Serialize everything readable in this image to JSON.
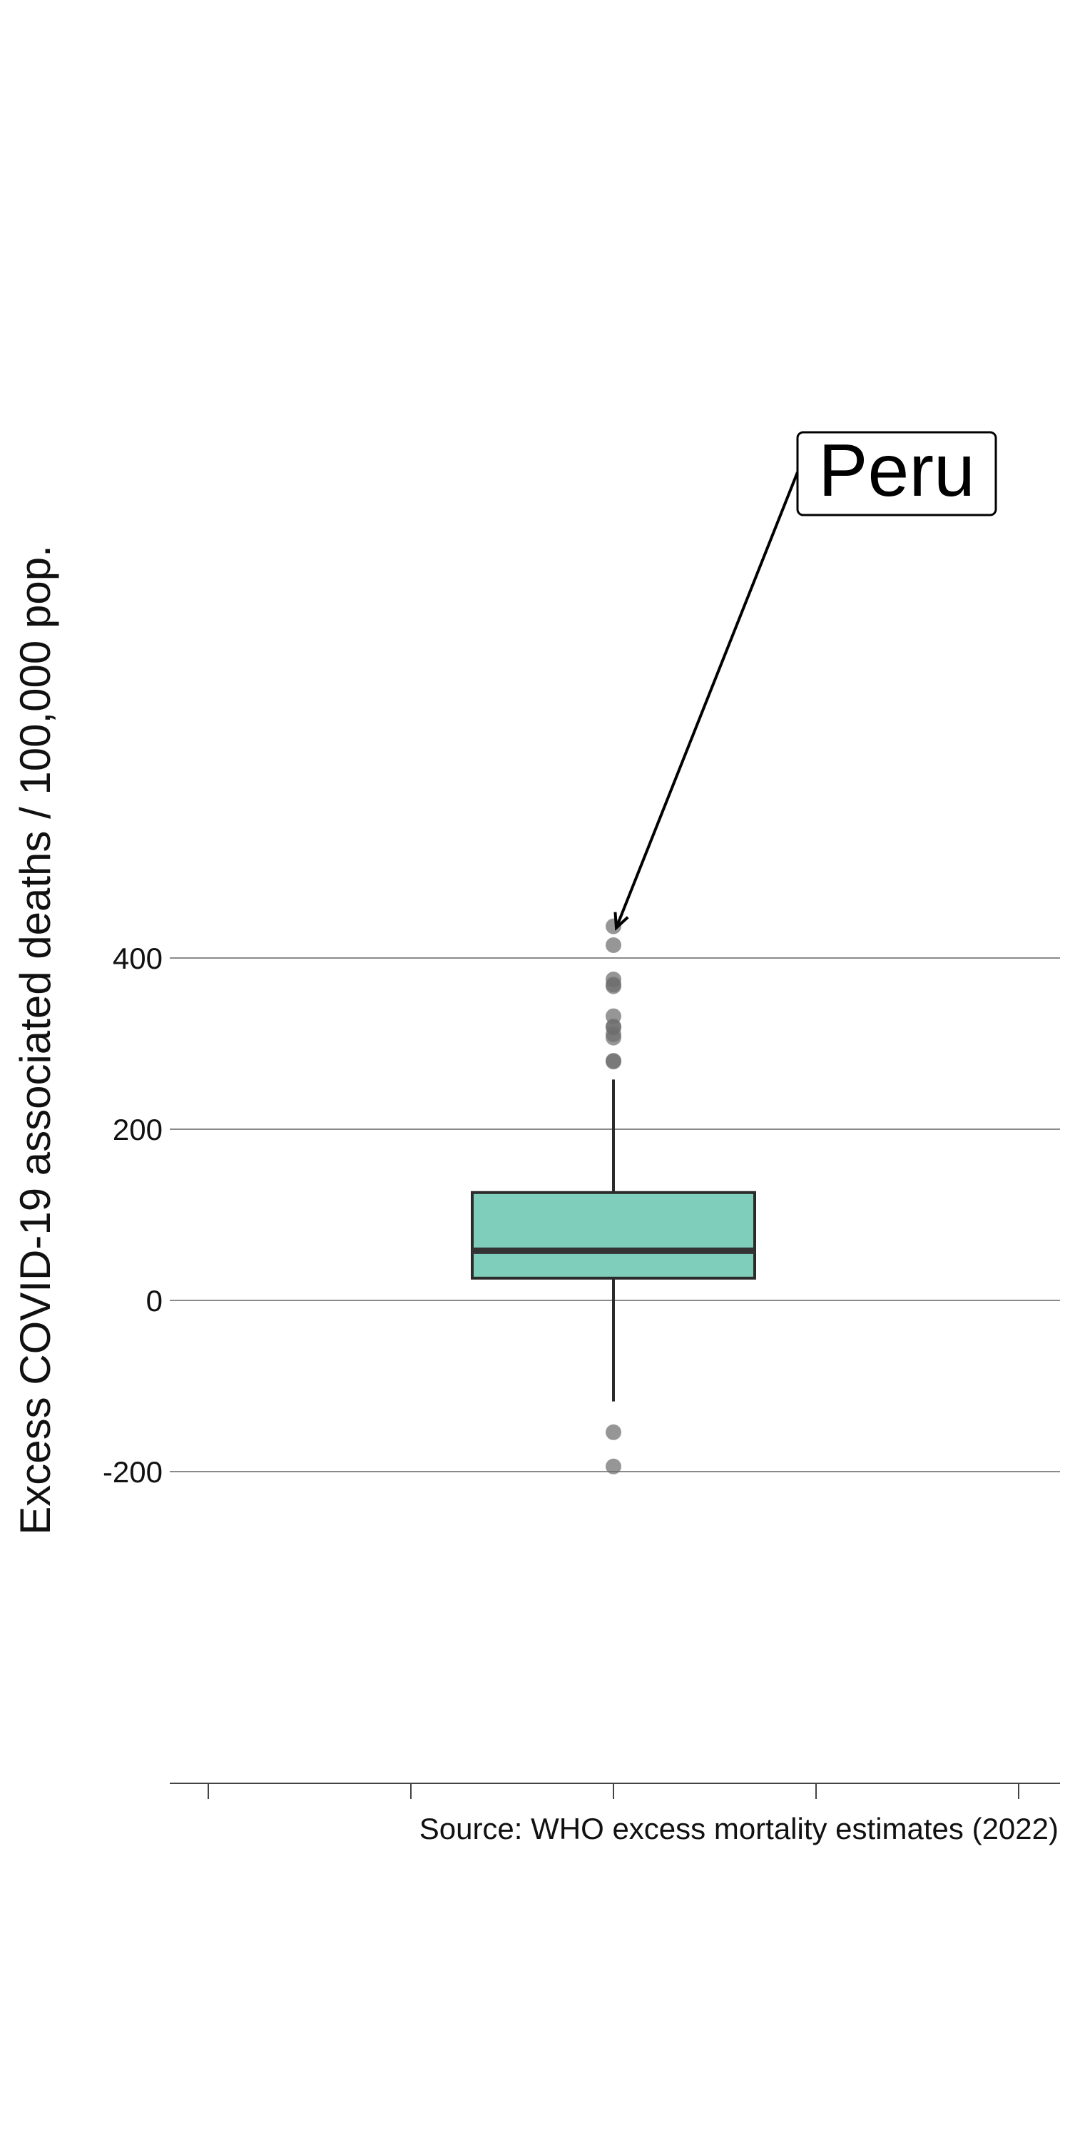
{
  "colors": {
    "box_fill": "#7fcdbb",
    "box_stroke": "#2b2b2b",
    "median": "#333333",
    "whisker": "#2b2b2b",
    "outlier": "#6e6e6e",
    "gridline": "#8a8a8a",
    "axis": "#444444",
    "text": "#111111",
    "annotation_box_fill": "#ffffff"
  },
  "chart_data": {
    "type": "box",
    "ylabel": "Excess COVID-19 associated deaths / 100,000 pop.",
    "xlabel": "",
    "caption": "Source: WHO excess mortality estimates (2022)",
    "ylim": [
      -225,
      600
    ],
    "yticks": [
      -200,
      0,
      200,
      400
    ],
    "ytick_labels": [
      "-200",
      "0",
      "200",
      "400"
    ],
    "x_tick_count": 5,
    "grid": "horizontal",
    "box": {
      "q1": 26,
      "median": 58,
      "q3": 126,
      "whisker_low": -118,
      "whisker_high": 258
    },
    "outliers": [
      437,
      415,
      375,
      369,
      367,
      332,
      320,
      319,
      311,
      307,
      280,
      279,
      -154,
      -194
    ],
    "annotation": {
      "label": "Peru",
      "value": 437
    }
  }
}
